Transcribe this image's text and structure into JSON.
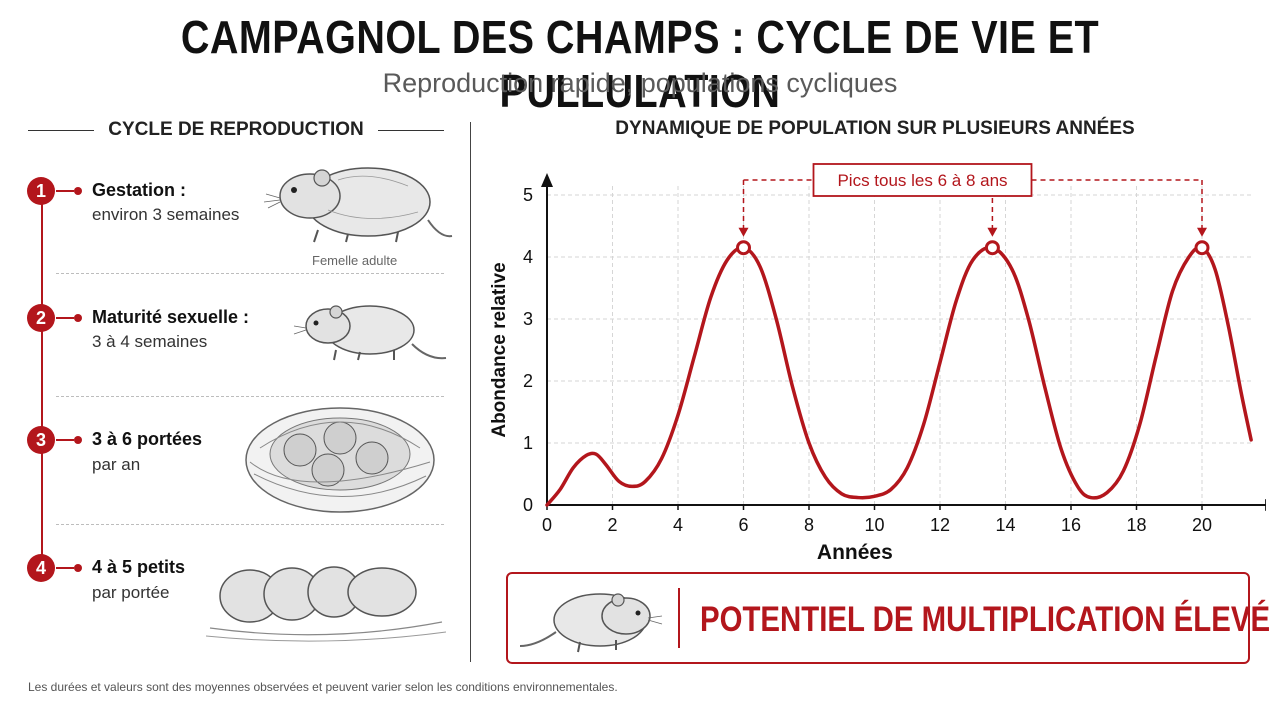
{
  "header": {
    "title": "CAMPAGNOL DES CHAMPS : CYCLE DE VIE ET PULLULATION",
    "subtitle": "Reproduction rapide, populations cycliques"
  },
  "reproduction": {
    "heading": "CYCLE DE REPRODUCTION",
    "steps": [
      {
        "number": "1",
        "title": "Gestation :",
        "desc": "environ 3 semaines",
        "caption": "Femelle adulte"
      },
      {
        "number": "2",
        "title": "Maturité sexuelle :",
        "desc": "3 à 4 semaines"
      },
      {
        "number": "3",
        "title": "3 à 6 portées",
        "desc": "par an"
      },
      {
        "number": "4",
        "title": "4 à 5 petits",
        "desc": "par portée"
      }
    ]
  },
  "colors": {
    "accent": "#b3161c",
    "text": "#111111",
    "muted": "#5a5a5a"
  },
  "chart_data": {
    "type": "line",
    "title": "DYNAMIQUE DE POPULATION SUR PLUSIEURS ANNÉES",
    "xlabel": "Années",
    "ylabel": "Abondance relative",
    "xlim": [
      0,
      21.5
    ],
    "ylim": [
      0,
      5
    ],
    "xticks": [
      0,
      2,
      4,
      6,
      8,
      10,
      12,
      14,
      16,
      18,
      20
    ],
    "yticks": [
      0,
      1,
      2,
      3,
      4,
      5
    ],
    "grid": true,
    "series": [
      {
        "x": [
          0,
          0.4,
          0.8,
          1.2,
          1.5,
          1.8,
          2.2,
          2.6,
          3.0,
          3.5,
          4.0,
          4.5,
          5.0,
          5.5,
          6.0,
          6.5,
          7.0,
          7.5,
          8.0,
          8.5,
          9.0,
          9.5,
          10.0,
          10.5,
          11.0,
          11.5,
          12.0,
          12.5,
          13.0,
          13.6,
          14.2,
          14.7,
          15.2,
          15.7,
          16.2,
          16.6,
          17.1,
          17.6,
          18.1,
          18.6,
          19.1,
          19.6,
          20.0,
          20.4,
          20.8,
          21.2,
          21.5
        ],
        "y": [
          0,
          0.25,
          0.6,
          0.8,
          0.82,
          0.65,
          0.38,
          0.3,
          0.38,
          0.75,
          1.45,
          2.4,
          3.35,
          3.95,
          4.15,
          3.85,
          3.0,
          1.9,
          1.0,
          0.45,
          0.18,
          0.12,
          0.14,
          0.25,
          0.6,
          1.3,
          2.3,
          3.3,
          3.95,
          4.15,
          3.8,
          3.0,
          1.9,
          0.9,
          0.3,
          0.12,
          0.2,
          0.55,
          1.3,
          2.4,
          3.45,
          4.0,
          4.15,
          3.8,
          2.9,
          1.8,
          1.05
        ]
      }
    ],
    "peaks": [
      {
        "x": 6,
        "y": 4.15
      },
      {
        "x": 13.6,
        "y": 4.15
      },
      {
        "x": 20,
        "y": 4.15
      }
    ],
    "annotation": "Pics tous les 6 à 8 ans"
  },
  "callout": {
    "text": "POTENTIEL DE MULTIPLICATION ÉLEVÉ"
  },
  "footnote": "Les durées et valeurs sont des moyennes observées et peuvent varier selon les conditions environnementales."
}
